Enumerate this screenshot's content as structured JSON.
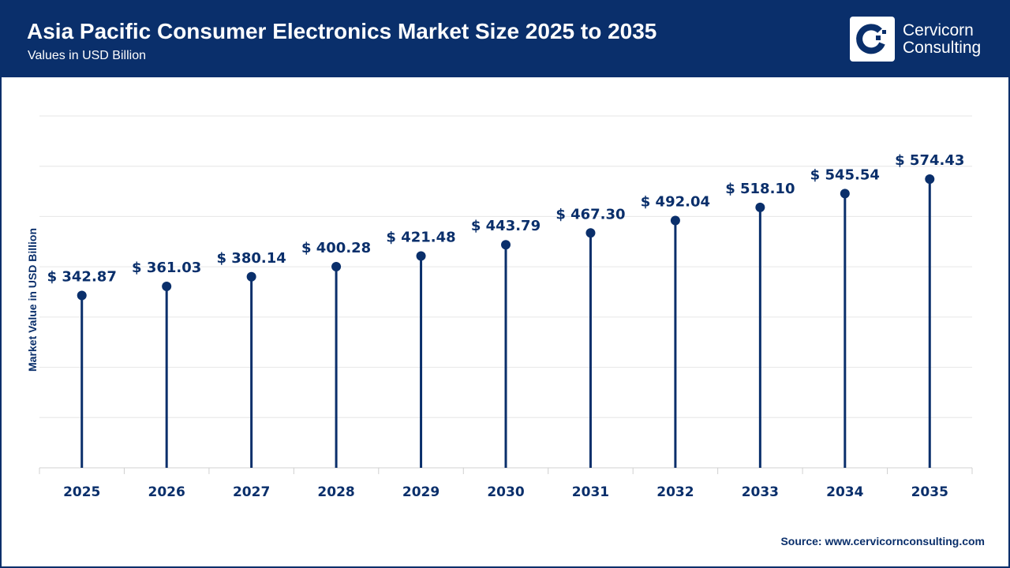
{
  "header": {
    "title": "Asia Pacific Consumer Electronics Market Size 2025 to 2035",
    "subtitle": "Values in USD Billion",
    "logo_text_line1": "Cervicorn",
    "logo_text_line2": "Consulting"
  },
  "footer": {
    "source": "Source: www.cervicornconsulting.com"
  },
  "colors": {
    "primary": "#0a2f6b",
    "grid": "#e6e6e6"
  },
  "chart_data": {
    "type": "lollipop",
    "title": "Asia Pacific Consumer Electronics Market Size 2025 to 2035",
    "subtitle": "Values in USD Billion",
    "xlabel": "",
    "ylabel": "Market Value in USD Billion",
    "categories": [
      "2025",
      "2026",
      "2027",
      "2028",
      "2029",
      "2030",
      "2031",
      "2032",
      "2033",
      "2034",
      "2035"
    ],
    "values": [
      342.87,
      361.03,
      380.14,
      400.28,
      421.48,
      443.79,
      467.3,
      492.04,
      518.1,
      545.54,
      574.43
    ],
    "data_labels": [
      "$ 342.87",
      "$ 361.03",
      "$ 380.14",
      "$ 400.28",
      "$ 421.48",
      "$ 443.79",
      "$ 467.30",
      "$ 492.04",
      "$ 518.10",
      "$ 545.54",
      "$ 574.43"
    ],
    "ylim": [
      0,
      700
    ],
    "ytick_step": 100,
    "y_tick_labels_shown": false,
    "grid": true,
    "legend": "none"
  }
}
